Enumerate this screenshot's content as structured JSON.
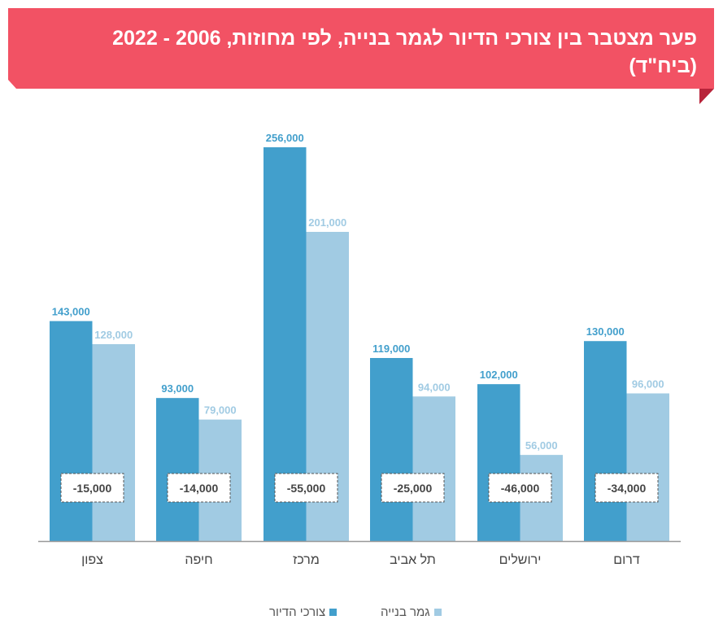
{
  "title": "פער מצטבר בין צורכי הדיור לגמר בנייה, לפי מחוזות, 2006 - 2022 (ביח\"ד)",
  "colors": {
    "banner": "#f25264",
    "need": "#429fcc",
    "completion": "#a1cbe3",
    "axis": "#999999",
    "gap_text": "#444444"
  },
  "legend": {
    "need": "צורכי הדיור",
    "completion": "גמר בנייה"
  },
  "chart_data": {
    "type": "bar",
    "categories": [
      "צפון",
      "חיפה",
      "מרכז",
      "תל אביב",
      "ירושלים",
      "דרום"
    ],
    "series": [
      {
        "name": "צורכי הדיור",
        "values": [
          143000,
          93000,
          256000,
          119000,
          102000,
          130000
        ],
        "labels": [
          "143,000",
          "93,000",
          "256,000",
          "119,000",
          "102,000",
          "130,000"
        ]
      },
      {
        "name": "גמר בנייה",
        "values": [
          128000,
          79000,
          201000,
          94000,
          56000,
          96000
        ],
        "labels": [
          "128,000",
          "79,000",
          "201,000",
          "94,000",
          "56,000",
          "96,000"
        ]
      }
    ],
    "gaps": [
      "-15,000",
      "-14,000",
      "-55,000",
      "-25,000",
      "-46,000",
      "-34,000"
    ],
    "ylim": [
      0,
      256000
    ],
    "grid": false
  }
}
